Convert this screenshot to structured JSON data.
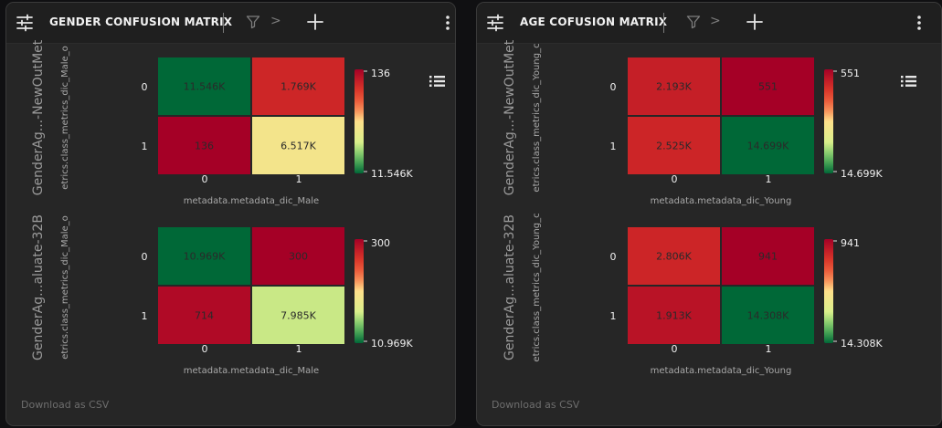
{
  "panels": [
    {
      "title": "GENDER CONFUSION MATRIX",
      "chevron": ">",
      "download_label": "Download as CSV",
      "chart_data": [
        {
          "type": "heatmap",
          "row_label": "GenderAg...-NewOutMet",
          "ylabel": "etrics.class_metrics_dic_Male_o",
          "xlabel": "metadata.metadata_dic_Male",
          "x_ticks": [
            "0",
            "1"
          ],
          "y_ticks": [
            "0",
            "1"
          ],
          "cells": [
            [
              "11.546K",
              "1.769K"
            ],
            [
              "136",
              "6.517K"
            ]
          ],
          "values": [
            [
              11546,
              1769
            ],
            [
              136,
              6517
            ]
          ],
          "colorbar": {
            "min": 136,
            "max": 11546,
            "min_label": "136",
            "max_label": "11.546K"
          }
        },
        {
          "type": "heatmap",
          "row_label": "GenderAg...aluate-32B",
          "ylabel": "etrics.class_metrics_dic_Male_o",
          "xlabel": "metadata.metadata_dic_Male",
          "x_ticks": [
            "0",
            "1"
          ],
          "y_ticks": [
            "0",
            "1"
          ],
          "cells": [
            [
              "10.969K",
              "300"
            ],
            [
              "714",
              "7.985K"
            ]
          ],
          "values": [
            [
              10969,
              300
            ],
            [
              714,
              7985
            ]
          ],
          "colorbar": {
            "min": 300,
            "max": 10969,
            "min_label": "300",
            "max_label": "10.969K"
          }
        }
      ]
    },
    {
      "title": "AGE COFUSION MATRIX",
      "chevron": ">",
      "download_label": "Download as CSV",
      "chart_data": [
        {
          "type": "heatmap",
          "row_label": "GenderAg...-NewOutMet",
          "ylabel": "etrics.class_metrics_dic_Young_c",
          "xlabel": "metadata.metadata_dic_Young",
          "x_ticks": [
            "0",
            "1"
          ],
          "y_ticks": [
            "0",
            "1"
          ],
          "cells": [
            [
              "2.193K",
              "551"
            ],
            [
              "2.525K",
              "14.699K"
            ]
          ],
          "values": [
            [
              2193,
              551
            ],
            [
              2525,
              14699
            ]
          ],
          "colorbar": {
            "min": 551,
            "max": 14699,
            "min_label": "551",
            "max_label": "14.699K"
          }
        },
        {
          "type": "heatmap",
          "row_label": "GenderAg...aluate-32B",
          "ylabel": "etrics.class_metrics_dic_Young_c",
          "xlabel": "metadata.metadata_dic_Young",
          "x_ticks": [
            "0",
            "1"
          ],
          "y_ticks": [
            "0",
            "1"
          ],
          "cells": [
            [
              "2.806K",
              "941"
            ],
            [
              "1.913K",
              "14.308K"
            ]
          ],
          "values": [
            [
              2806,
              941
            ],
            [
              1913,
              14308
            ]
          ],
          "colorbar": {
            "min": 941,
            "max": 14308,
            "min_label": "941",
            "max_label": "14.308K"
          }
        }
      ]
    }
  ]
}
